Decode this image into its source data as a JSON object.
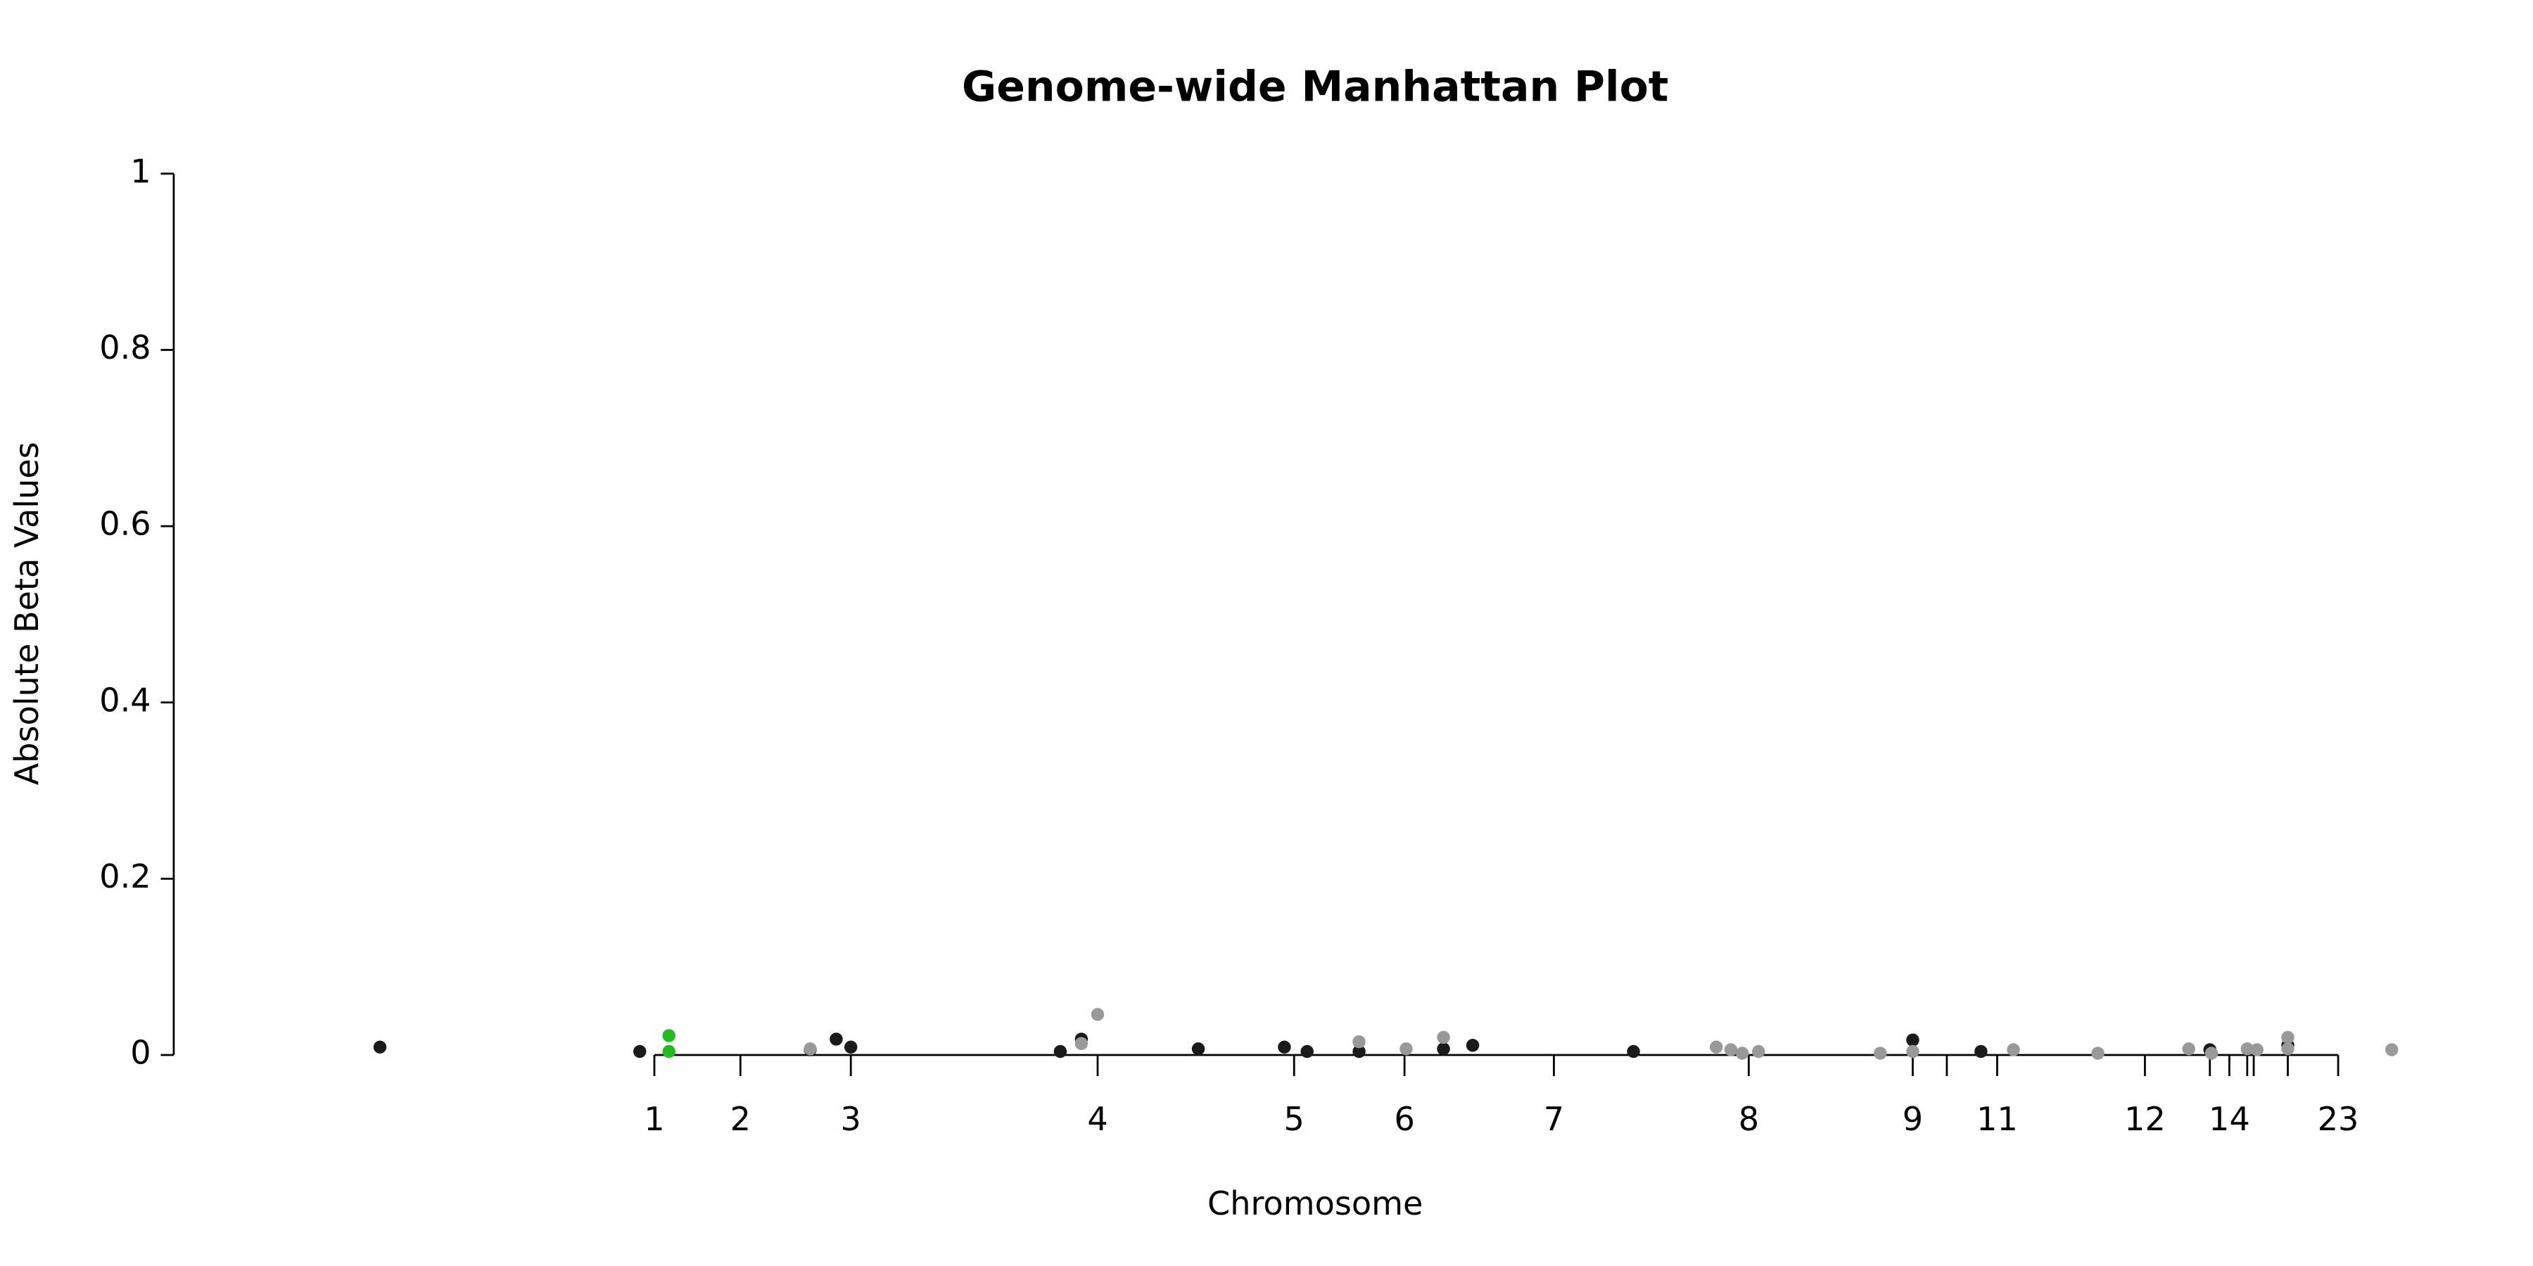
{
  "chart_data": {
    "type": "scatter",
    "title": "Genome-wide Manhattan Plot",
    "x_label": "Chromosome",
    "y_label": "Absolute Beta Values",
    "xlim": [
      -296,
      1121
    ],
    "ylim": [
      0,
      1
    ],
    "xticks": [
      {
        "value": 0,
        "label": "1"
      },
      {
        "value": 53,
        "label": "2"
      },
      {
        "value": 121,
        "label": "3"
      },
      {
        "value": 273,
        "label": "4"
      },
      {
        "value": 394,
        "label": "5"
      },
      {
        "value": 462,
        "label": "6"
      },
      {
        "value": 554,
        "label": "7"
      },
      {
        "value": 674,
        "label": "8"
      },
      {
        "value": 775,
        "label": "9"
      },
      {
        "value": 796,
        "label": null
      },
      {
        "value": 827,
        "label": "11"
      },
      {
        "value": 918,
        "label": "12"
      },
      {
        "value": 958,
        "label": null
      },
      {
        "value": 970,
        "label": "14"
      },
      {
        "value": 981,
        "label": null
      },
      {
        "value": 985,
        "label": null
      },
      {
        "value": 1006,
        "label": null
      },
      {
        "value": 1037,
        "label": "23"
      }
    ],
    "yticks": [
      0.0,
      0.2,
      0.4,
      0.6,
      0.8,
      1.0
    ],
    "series": [
      {
        "color": "#1a1a1a",
        "x": [
          -169,
          -9,
          96,
          112,
          121,
          250,
          263,
          335,
          388,
          402,
          434,
          486,
          504,
          603,
          775,
          817,
          958,
          1006
        ],
        "values": [
          0.009,
          0.004,
          0.006,
          0.018,
          0.009,
          0.004,
          0.018,
          0.007,
          0.009,
          0.004,
          0.004,
          0.007,
          0.011,
          0.004,
          0.017,
          0.004,
          0.006,
          0.011
        ]
      },
      {
        "color": "#999999",
        "x": [
          96,
          263,
          273,
          434,
          463,
          486,
          654,
          663,
          670,
          680,
          755,
          775,
          837,
          889,
          945,
          959,
          981,
          987,
          1006,
          1006,
          1070
        ],
        "values": [
          0.007,
          0.013,
          0.046,
          0.015,
          0.007,
          0.02,
          0.009,
          0.006,
          0.002,
          0.004,
          0.002,
          0.004,
          0.006,
          0.002,
          0.007,
          0.002,
          0.007,
          0.006,
          0.02,
          0.007,
          0.006
        ]
      },
      {
        "color": "#22bb22",
        "x": [
          9,
          9
        ],
        "values": [
          0.022,
          0.004
        ]
      }
    ]
  }
}
